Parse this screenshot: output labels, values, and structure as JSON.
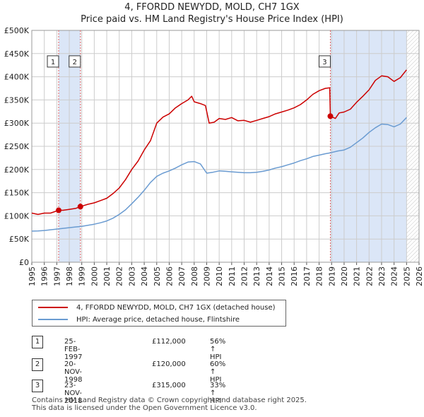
{
  "chart_data": {
    "type": "line",
    "title": "4, FFORDD NEWYDD, MOLD, CH7 1GX",
    "subtitle": "Price paid vs. HM Land Registry's House Price Index (HPI)",
    "xlim": [
      1995,
      2026
    ],
    "ylim": [
      0,
      500000
    ],
    "x_ticks": [
      "1995",
      "1996",
      "1997",
      "1998",
      "1999",
      "2000",
      "2001",
      "2002",
      "2003",
      "2004",
      "2005",
      "2006",
      "2007",
      "2008",
      "2009",
      "2010",
      "2011",
      "2012",
      "2013",
      "2014",
      "2015",
      "2016",
      "2017",
      "2018",
      "2019",
      "2020",
      "2021",
      "2022",
      "2023",
      "2024",
      "2025",
      "2026"
    ],
    "y_ticks": [
      {
        "value": 0,
        "label": "£0"
      },
      {
        "value": 50000,
        "label": "£50K"
      },
      {
        "value": 100000,
        "label": "£100K"
      },
      {
        "value": 150000,
        "label": "£150K"
      },
      {
        "value": 200000,
        "label": "£200K"
      },
      {
        "value": 250000,
        "label": "£250K"
      },
      {
        "value": 300000,
        "label": "£300K"
      },
      {
        "value": 350000,
        "label": "£350K"
      },
      {
        "value": 400000,
        "label": "£400K"
      },
      {
        "value": 450000,
        "label": "£450K"
      },
      {
        "value": 500000,
        "label": "£500K"
      }
    ],
    "grid": true,
    "shaded_periods": [
      [
        1997.15,
        1998.89
      ],
      [
        2018.9,
        2025.0
      ]
    ],
    "future_hatch_from": 2025.0,
    "series": [
      {
        "name": "4, FFORDD NEWYDD, MOLD, CH7 1GX (detached house)",
        "color": "#cc0000",
        "points": [
          [
            1995.0,
            106000
          ],
          [
            1995.5,
            103000
          ],
          [
            1996.0,
            106000
          ],
          [
            1996.5,
            106000
          ],
          [
            1997.15,
            112000
          ],
          [
            1997.5,
            112000
          ],
          [
            1998.0,
            114000
          ],
          [
            1998.5,
            116000
          ],
          [
            1998.89,
            120000
          ],
          [
            1999.5,
            125000
          ],
          [
            2000.0,
            128000
          ],
          [
            2000.5,
            133000
          ],
          [
            2001.0,
            138000
          ],
          [
            2001.5,
            148000
          ],
          [
            2002.0,
            160000
          ],
          [
            2002.5,
            178000
          ],
          [
            2003.0,
            200000
          ],
          [
            2003.5,
            218000
          ],
          [
            2004.0,
            242000
          ],
          [
            2004.5,
            262000
          ],
          [
            2005.0,
            300000
          ],
          [
            2005.5,
            313000
          ],
          [
            2006.0,
            320000
          ],
          [
            2006.5,
            333000
          ],
          [
            2007.0,
            342000
          ],
          [
            2007.5,
            350000
          ],
          [
            2007.8,
            358000
          ],
          [
            2008.0,
            346000
          ],
          [
            2008.5,
            342000
          ],
          [
            2008.9,
            338000
          ],
          [
            2009.2,
            300000
          ],
          [
            2009.6,
            302000
          ],
          [
            2010.0,
            310000
          ],
          [
            2010.5,
            308000
          ],
          [
            2011.0,
            312000
          ],
          [
            2011.5,
            305000
          ],
          [
            2012.0,
            306000
          ],
          [
            2012.5,
            302000
          ],
          [
            2013.0,
            306000
          ],
          [
            2013.5,
            310000
          ],
          [
            2014.0,
            314000
          ],
          [
            2014.5,
            320000
          ],
          [
            2015.0,
            324000
          ],
          [
            2015.5,
            328000
          ],
          [
            2016.0,
            333000
          ],
          [
            2016.5,
            340000
          ],
          [
            2017.0,
            350000
          ],
          [
            2017.5,
            362000
          ],
          [
            2018.0,
            370000
          ],
          [
            2018.5,
            375000
          ],
          [
            2018.85,
            376000
          ],
          [
            2018.9,
            315000
          ],
          [
            2019.3,
            310000
          ],
          [
            2019.6,
            322000
          ],
          [
            2020.0,
            324000
          ],
          [
            2020.5,
            330000
          ],
          [
            2021.0,
            345000
          ],
          [
            2021.5,
            358000
          ],
          [
            2022.0,
            372000
          ],
          [
            2022.5,
            392000
          ],
          [
            2023.0,
            402000
          ],
          [
            2023.5,
            400000
          ],
          [
            2024.0,
            390000
          ],
          [
            2024.5,
            398000
          ],
          [
            2025.0,
            415000
          ]
        ]
      },
      {
        "name": "HPI: Average price, detached house, Flintshire",
        "color": "#6a9bd1",
        "points": [
          [
            1995.0,
            67000
          ],
          [
            1995.5,
            67500
          ],
          [
            1996.0,
            68500
          ],
          [
            1996.5,
            70000
          ],
          [
            1997.0,
            71500
          ],
          [
            1997.5,
            73000
          ],
          [
            1998.0,
            74500
          ],
          [
            1998.5,
            76000
          ],
          [
            1999.0,
            77500
          ],
          [
            1999.5,
            79500
          ],
          [
            2000.0,
            82000
          ],
          [
            2000.5,
            85000
          ],
          [
            2001.0,
            89000
          ],
          [
            2001.5,
            95000
          ],
          [
            2002.0,
            103000
          ],
          [
            2002.5,
            113000
          ],
          [
            2003.0,
            126000
          ],
          [
            2003.5,
            140000
          ],
          [
            2004.0,
            155000
          ],
          [
            2004.5,
            172000
          ],
          [
            2005.0,
            185000
          ],
          [
            2005.5,
            192000
          ],
          [
            2006.0,
            197000
          ],
          [
            2006.5,
            203000
          ],
          [
            2007.0,
            210000
          ],
          [
            2007.5,
            216000
          ],
          [
            2008.0,
            217000
          ],
          [
            2008.5,
            212000
          ],
          [
            2009.0,
            192000
          ],
          [
            2009.5,
            194000
          ],
          [
            2010.0,
            197000
          ],
          [
            2010.5,
            196000
          ],
          [
            2011.0,
            195000
          ],
          [
            2011.5,
            194000
          ],
          [
            2012.0,
            193000
          ],
          [
            2012.5,
            193000
          ],
          [
            2013.0,
            194000
          ],
          [
            2013.5,
            196000
          ],
          [
            2014.0,
            199000
          ],
          [
            2014.5,
            203000
          ],
          [
            2015.0,
            206000
          ],
          [
            2015.5,
            210000
          ],
          [
            2016.0,
            214000
          ],
          [
            2016.5,
            219000
          ],
          [
            2017.0,
            223000
          ],
          [
            2017.5,
            228000
          ],
          [
            2018.0,
            231000
          ],
          [
            2018.5,
            234000
          ],
          [
            2018.9,
            236000
          ],
          [
            2019.5,
            240000
          ],
          [
            2020.0,
            242000
          ],
          [
            2020.5,
            248000
          ],
          [
            2021.0,
            258000
          ],
          [
            2021.5,
            268000
          ],
          [
            2022.0,
            280000
          ],
          [
            2022.5,
            290000
          ],
          [
            2023.0,
            298000
          ],
          [
            2023.5,
            297000
          ],
          [
            2024.0,
            292000
          ],
          [
            2024.5,
            298000
          ],
          [
            2025.0,
            312000
          ]
        ]
      }
    ],
    "markers": [
      {
        "label": "1",
        "x": 1997.15,
        "y": 112000
      },
      {
        "label": "2",
        "x": 1998.89,
        "y": 120000
      },
      {
        "label": "3",
        "x": 2018.9,
        "y": 315000
      }
    ],
    "marker_label_y": 430000
  },
  "legend": {
    "red": "4, FFORDD NEWYDD, MOLD, CH7 1GX (detached house)",
    "blue": "HPI: Average price, detached house, Flintshire"
  },
  "transactions": [
    {
      "num": "1",
      "date": "25-FEB-1997",
      "price": "£112,000",
      "hpi": "56% ↑ HPI"
    },
    {
      "num": "2",
      "date": "20-NOV-1998",
      "price": "£120,000",
      "hpi": "60% ↑ HPI"
    },
    {
      "num": "3",
      "date": "23-NOV-2018",
      "price": "£315,000",
      "hpi": "33% ↑ HPI"
    }
  ],
  "footer": {
    "line1": "Contains HM Land Registry data © Crown copyright and database right 2025.",
    "line2": "This data is licensed under the Open Government Licence v3.0."
  },
  "colors": {
    "red": "#cc0000",
    "blue": "#6a9bd1",
    "shade": "#dbe6f7"
  }
}
